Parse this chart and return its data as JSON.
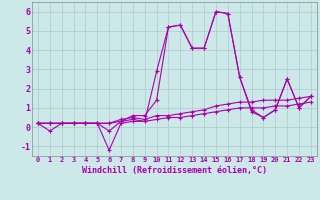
{
  "xlabel": "Windchill (Refroidissement éolien,°C)",
  "background_color": "#cce8e8",
  "grid_color": "#aacccc",
  "line_color": "#aa00aa",
  "xlim": [
    -0.5,
    23.5
  ],
  "ylim": [
    -1.5,
    6.5
  ],
  "yticks": [
    -1,
    0,
    1,
    2,
    3,
    4,
    5,
    6
  ],
  "xticks": [
    0,
    1,
    2,
    3,
    4,
    5,
    6,
    7,
    8,
    9,
    10,
    11,
    12,
    13,
    14,
    15,
    16,
    17,
    18,
    19,
    20,
    21,
    22,
    23
  ],
  "lines": [
    [
      0.2,
      0.2,
      0.2,
      0.2,
      0.2,
      0.2,
      -0.2,
      0.3,
      0.6,
      0.6,
      1.4,
      5.2,
      5.3,
      4.1,
      4.1,
      6.0,
      5.9,
      2.6,
      0.9,
      0.5,
      0.9,
      2.5,
      1.0,
      1.6
    ],
    [
      0.2,
      -0.2,
      0.2,
      0.2,
      0.2,
      0.2,
      -1.2,
      0.2,
      0.3,
      0.3,
      2.9,
      5.2,
      5.3,
      4.1,
      4.1,
      6.0,
      5.9,
      2.6,
      0.8,
      0.5,
      0.9,
      2.5,
      1.0,
      1.6
    ],
    [
      0.2,
      0.2,
      0.2,
      0.2,
      0.2,
      0.2,
      0.2,
      0.4,
      0.5,
      0.4,
      0.6,
      0.6,
      0.7,
      0.8,
      0.9,
      1.1,
      1.2,
      1.3,
      1.3,
      1.4,
      1.4,
      1.4,
      1.5,
      1.6
    ],
    [
      0.2,
      0.2,
      0.2,
      0.2,
      0.2,
      0.2,
      0.2,
      0.3,
      0.4,
      0.3,
      0.4,
      0.5,
      0.5,
      0.6,
      0.7,
      0.8,
      0.9,
      1.0,
      1.0,
      1.0,
      1.1,
      1.1,
      1.2,
      1.3
    ]
  ]
}
